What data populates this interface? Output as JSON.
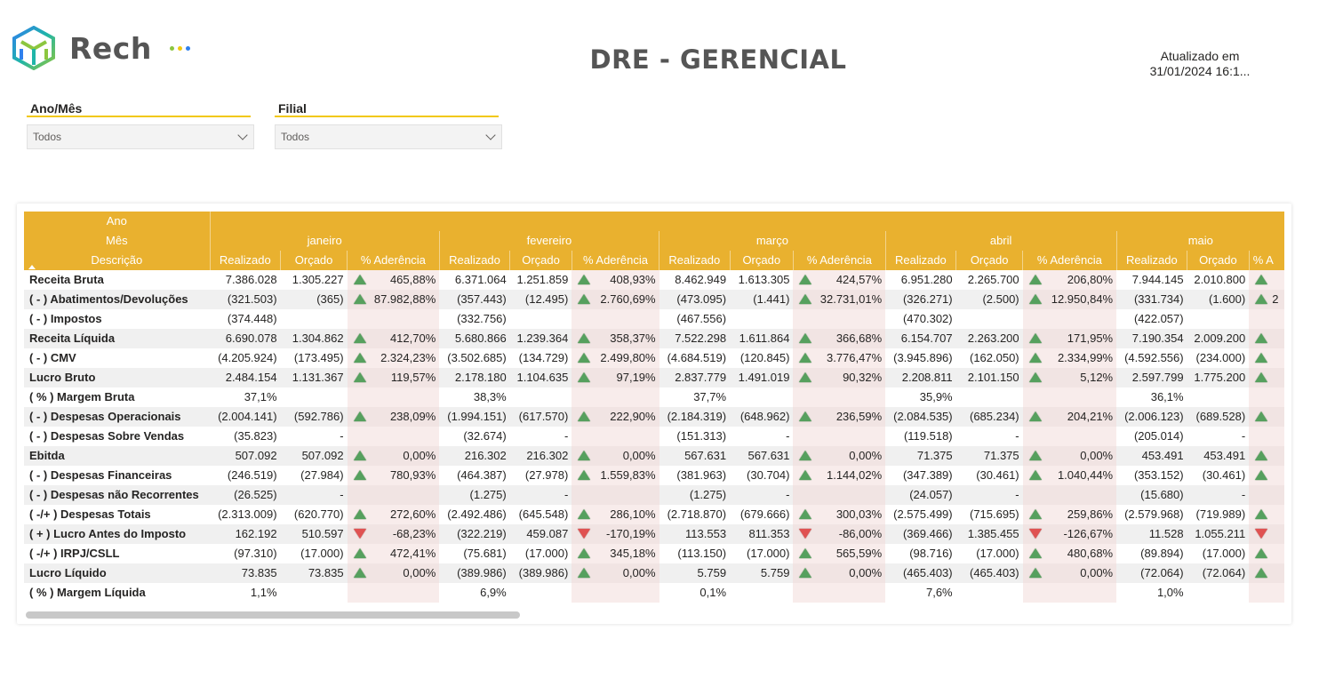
{
  "brand": {
    "name": "Rech",
    "dot_colors": [
      "#8cc63f",
      "#f2c811",
      "#2f80ed"
    ]
  },
  "page_title": "DRE - GERENCIAL",
  "updated": {
    "line1": "Atualizado em",
    "line2": "31/01/2024 16:1..."
  },
  "slicers": [
    {
      "title": "Ano/Mês",
      "value": "Todos"
    },
    {
      "title": "Filial",
      "value": "Todos"
    }
  ],
  "matrix": {
    "row_headers": {
      "year": "Ano",
      "month": "Mês",
      "description": "Descrição"
    },
    "measure_headers": [
      "Realizado",
      "Orçado",
      "% Aderência"
    ],
    "months": [
      "janeiro",
      "fevereiro",
      "março",
      "abril",
      "maio"
    ],
    "rows": [
      {
        "label": "Receita Bruta",
        "cells": [
          [
            "7.386.028",
            "1.305.227",
            "465,88%",
            "up"
          ],
          [
            "6.371.064",
            "1.251.859",
            "408,93%",
            "up"
          ],
          [
            "8.462.949",
            "1.613.305",
            "424,57%",
            "up"
          ],
          [
            "6.951.280",
            "2.265.700",
            "206,80%",
            "up"
          ],
          [
            "7.944.145",
            "2.010.800",
            "",
            "up"
          ]
        ]
      },
      {
        "label": "( - ) Abatimentos/Devoluções",
        "cells": [
          [
            "(321.503)",
            "(365)",
            "87.982,88%",
            "up"
          ],
          [
            "(357.443)",
            "(12.495)",
            "2.760,69%",
            "up"
          ],
          [
            "(473.095)",
            "(1.441)",
            "32.731,01%",
            "up"
          ],
          [
            "(326.271)",
            "(2.500)",
            "12.950,84%",
            "up"
          ],
          [
            "(331.734)",
            "(1.600)",
            "2",
            "up"
          ]
        ]
      },
      {
        "label": "( - ) Impostos",
        "cells": [
          [
            "(374.448)",
            "",
            "",
            ""
          ],
          [
            "(332.756)",
            "",
            "",
            ""
          ],
          [
            "(467.556)",
            "",
            "",
            ""
          ],
          [
            "(470.302)",
            "",
            "",
            ""
          ],
          [
            "(422.057)",
            "",
            "",
            ""
          ]
        ]
      },
      {
        "label": "Receita Líquida",
        "cells": [
          [
            "6.690.078",
            "1.304.862",
            "412,70%",
            "up"
          ],
          [
            "5.680.866",
            "1.239.364",
            "358,37%",
            "up"
          ],
          [
            "7.522.298",
            "1.611.864",
            "366,68%",
            "up"
          ],
          [
            "6.154.707",
            "2.263.200",
            "171,95%",
            "up"
          ],
          [
            "7.190.354",
            "2.009.200",
            "",
            "up"
          ]
        ]
      },
      {
        "label": "( - ) CMV",
        "cells": [
          [
            "(4.205.924)",
            "(173.495)",
            "2.324,23%",
            "up"
          ],
          [
            "(3.502.685)",
            "(134.729)",
            "2.499,80%",
            "up"
          ],
          [
            "(4.684.519)",
            "(120.845)",
            "3.776,47%",
            "up"
          ],
          [
            "(3.945.896)",
            "(162.050)",
            "2.334,99%",
            "up"
          ],
          [
            "(4.592.556)",
            "(234.000)",
            "",
            "up"
          ]
        ]
      },
      {
        "label": "Lucro Bruto",
        "cells": [
          [
            "2.484.154",
            "1.131.367",
            "119,57%",
            "up"
          ],
          [
            "2.178.180",
            "1.104.635",
            "97,19%",
            "up"
          ],
          [
            "2.837.779",
            "1.491.019",
            "90,32%",
            "up"
          ],
          [
            "2.208.811",
            "2.101.150",
            "5,12%",
            "up"
          ],
          [
            "2.597.799",
            "1.775.200",
            "",
            "up"
          ]
        ]
      },
      {
        "label": "( % ) Margem Bruta",
        "cells": [
          [
            "37,1%",
            "",
            "",
            ""
          ],
          [
            "38,3%",
            "",
            "",
            ""
          ],
          [
            "37,7%",
            "",
            "",
            ""
          ],
          [
            "35,9%",
            "",
            "",
            ""
          ],
          [
            "36,1%",
            "",
            "",
            ""
          ]
        ]
      },
      {
        "label": "( - ) Despesas Operacionais",
        "cells": [
          [
            "(2.004.141)",
            "(592.786)",
            "238,09%",
            "up"
          ],
          [
            "(1.994.151)",
            "(617.570)",
            "222,90%",
            "up"
          ],
          [
            "(2.184.319)",
            "(648.962)",
            "236,59%",
            "up"
          ],
          [
            "(2.084.535)",
            "(685.234)",
            "204,21%",
            "up"
          ],
          [
            "(2.006.123)",
            "(689.528)",
            "",
            "up"
          ]
        ]
      },
      {
        "label": "( - ) Despesas Sobre Vendas",
        "cells": [
          [
            "(35.823)",
            "-",
            "",
            ""
          ],
          [
            "(32.674)",
            "-",
            "",
            ""
          ],
          [
            "(151.313)",
            "-",
            "",
            ""
          ],
          [
            "(119.518)",
            "-",
            "",
            ""
          ],
          [
            "(205.014)",
            "-",
            "",
            ""
          ]
        ]
      },
      {
        "label": "Ebitda",
        "cells": [
          [
            "507.092",
            "507.092",
            "0,00%",
            "up"
          ],
          [
            "216.302",
            "216.302",
            "0,00%",
            "up"
          ],
          [
            "567.631",
            "567.631",
            "0,00%",
            "up"
          ],
          [
            "71.375",
            "71.375",
            "0,00%",
            "up"
          ],
          [
            "453.491",
            "453.491",
            "",
            "up"
          ]
        ]
      },
      {
        "label": "( - ) Despesas Financeiras",
        "cells": [
          [
            "(246.519)",
            "(27.984)",
            "780,93%",
            "up"
          ],
          [
            "(464.387)",
            "(27.978)",
            "1.559,83%",
            "up"
          ],
          [
            "(381.963)",
            "(30.704)",
            "1.144,02%",
            "up"
          ],
          [
            "(347.389)",
            "(30.461)",
            "1.040,44%",
            "up"
          ],
          [
            "(353.152)",
            "(30.461)",
            "",
            "up"
          ]
        ]
      },
      {
        "label": "( - ) Despesas não Recorrentes",
        "cells": [
          [
            "(26.525)",
            "-",
            "",
            ""
          ],
          [
            "(1.275)",
            "-",
            "",
            ""
          ],
          [
            "(1.275)",
            "-",
            "",
            ""
          ],
          [
            "(24.057)",
            "-",
            "",
            ""
          ],
          [
            "(15.680)",
            "-",
            "",
            ""
          ]
        ]
      },
      {
        "label": "( -/+ ) Despesas Totais",
        "cells": [
          [
            "(2.313.009)",
            "(620.770)",
            "272,60%",
            "up"
          ],
          [
            "(2.492.486)",
            "(645.548)",
            "286,10%",
            "up"
          ],
          [
            "(2.718.870)",
            "(679.666)",
            "300,03%",
            "up"
          ],
          [
            "(2.575.499)",
            "(715.695)",
            "259,86%",
            "up"
          ],
          [
            "(2.579.968)",
            "(719.989)",
            "",
            "up"
          ]
        ]
      },
      {
        "label": "( + ) Lucro Antes do Imposto",
        "cells": [
          [
            "162.192",
            "510.597",
            "-68,23%",
            "down"
          ],
          [
            "(322.219)",
            "459.087",
            "-170,19%",
            "down"
          ],
          [
            "113.553",
            "811.353",
            "-86,00%",
            "down"
          ],
          [
            "(369.466)",
            "1.385.455",
            "-126,67%",
            "down"
          ],
          [
            "11.528",
            "1.055.211",
            "",
            "down"
          ]
        ]
      },
      {
        "label": "( -/+ ) IRPJ/CSLL",
        "cells": [
          [
            "(97.310)",
            "(17.000)",
            "472,41%",
            "up"
          ],
          [
            "(75.681)",
            "(17.000)",
            "345,18%",
            "up"
          ],
          [
            "(113.150)",
            "(17.000)",
            "565,59%",
            "up"
          ],
          [
            "(98.716)",
            "(17.000)",
            "480,68%",
            "up"
          ],
          [
            "(89.894)",
            "(17.000)",
            "",
            "up"
          ]
        ]
      },
      {
        "label": "Lucro Líquido",
        "cells": [
          [
            "73.835",
            "73.835",
            "0,00%",
            "up"
          ],
          [
            "(389.986)",
            "(389.986)",
            "0,00%",
            "up"
          ],
          [
            "5.759",
            "5.759",
            "0,00%",
            "up"
          ],
          [
            "(465.403)",
            "(465.403)",
            "0,00%",
            "up"
          ],
          [
            "(72.064)",
            "(72.064)",
            "",
            "up"
          ]
        ]
      },
      {
        "label": "( % ) Margem Líquida",
        "cells": [
          [
            "1,1%",
            "",
            "",
            ""
          ],
          [
            "6,9%",
            "",
            "",
            ""
          ],
          [
            "0,1%",
            "",
            "",
            ""
          ],
          [
            "7,6%",
            "",
            "",
            ""
          ],
          [
            "1,0%",
            "",
            "",
            ""
          ]
        ]
      }
    ],
    "truncated_last_header": "% A"
  }
}
